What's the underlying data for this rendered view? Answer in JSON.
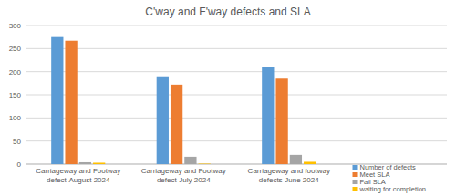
{
  "chart_data": {
    "type": "bar",
    "title": "C'way and F'way defects and SLA",
    "categories": [
      "Carriageway and Footway defect-August 2024",
      "Carriageway and Footway defect-July 2024",
      "Carriageway and footway defects-June 2024",
      null
    ],
    "series": [
      {
        "name": "Number of defects",
        "color": "#5b9bd5",
        "values": [
          275,
          190,
          210,
          null
        ]
      },
      {
        "name": "Meet SLA",
        "color": "#ed7d31",
        "values": [
          267,
          172,
          185,
          null
        ]
      },
      {
        "name": "Fail SLA",
        "color": "#a5a5a5",
        "values": [
          4,
          16,
          20,
          null
        ]
      },
      {
        "name": "waiting for completion",
        "color": "#ffc000",
        "values": [
          3,
          1,
          5,
          null
        ]
      }
    ],
    "ylim": [
      0,
      300
    ],
    "yticks": [
      0,
      50,
      100,
      150,
      200,
      250,
      300
    ],
    "grid": true,
    "legend": "bottom-right"
  }
}
